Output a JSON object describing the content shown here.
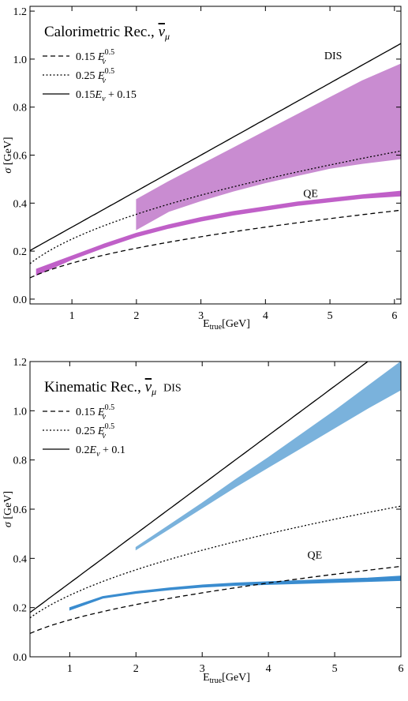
{
  "chart_data": [
    {
      "type": "line",
      "legend_title": "Calorimetric Rec., ",
      "legend_title_sym": "ν",
      "legend_title_sub": "μ",
      "xlabel_main": "E",
      "xlabel_sub": "true",
      "xlabel_unit": "[GeV]",
      "ylabel_sym": "σ",
      "ylabel_unit": " [GeV]",
      "xlim": [
        0.35,
        6.1
      ],
      "ylim": [
        -0.02,
        1.22
      ],
      "xticks": [
        1,
        2,
        3,
        4,
        5,
        6
      ],
      "yticks": [
        0.0,
        0.2,
        0.4,
        0.6,
        0.8,
        1.0,
        1.2
      ],
      "legend": [
        {
          "style": "dashed",
          "coef": "0.15 ",
          "sym": "E",
          "sub": "ν",
          "sup": "0.5",
          "tail": ""
        },
        {
          "style": "dotted",
          "coef": "0.25 ",
          "sym": "E",
          "sub": "ν",
          "sup": "0.5",
          "tail": ""
        },
        {
          "style": "solid",
          "coef": "0.15",
          "sym": "E",
          "sub": "ν",
          "sup": "",
          "tail": " + 0.15"
        }
      ],
      "curves": {
        "dashed_coef": 0.15,
        "dotted_coef": 0.25,
        "solid_slope": 0.15,
        "solid_intercept": 0.15
      },
      "annotations": [
        {
          "text": "DIS",
          "x": 5.05,
          "y": 1.0
        },
        {
          "text": "QE",
          "x": 4.7,
          "y": 0.425
        }
      ],
      "dis_band": {
        "color": "#c98cd1",
        "x": [
          2.0,
          2.5,
          3.0,
          3.5,
          4.0,
          4.5,
          5.0,
          5.5,
          6.1
        ],
        "upper": [
          0.415,
          0.49,
          0.56,
          0.63,
          0.7,
          0.77,
          0.84,
          0.91,
          0.98
        ],
        "lower": [
          0.29,
          0.365,
          0.41,
          0.45,
          0.485,
          0.515,
          0.545,
          0.565,
          0.585
        ]
      },
      "qe_band": {
        "color": "#c060c8",
        "x": [
          0.45,
          1.0,
          1.5,
          2.0,
          2.5,
          3.0,
          3.5,
          4.0,
          4.5,
          5.0,
          5.5,
          6.1
        ],
        "upper": [
          0.125,
          0.18,
          0.23,
          0.275,
          0.31,
          0.34,
          0.365,
          0.385,
          0.405,
          0.42,
          0.435,
          0.45
        ],
        "lower": [
          0.1,
          0.165,
          0.215,
          0.26,
          0.295,
          0.325,
          0.35,
          0.37,
          0.39,
          0.405,
          0.42,
          0.43
        ]
      }
    },
    {
      "type": "line",
      "legend_title": "Kinematic Rec., ",
      "legend_title_sym": "ν",
      "legend_title_sub": "μ",
      "xlabel_main": "E",
      "xlabel_sub": "true",
      "xlabel_unit": "[GeV]",
      "ylabel_sym": "σ",
      "ylabel_unit": " [GeV]",
      "xlim": [
        0.4,
        6.0
      ],
      "ylim": [
        0.0,
        1.2
      ],
      "xticks": [
        1,
        2,
        3,
        4,
        5,
        6
      ],
      "yticks": [
        0.0,
        0.2,
        0.4,
        0.6,
        0.8,
        1.0,
        1.2
      ],
      "legend": [
        {
          "style": "dashed",
          "coef": "0.15 ",
          "sym": "E",
          "sub": "ν",
          "sup": "0.5",
          "tail": ""
        },
        {
          "style": "dotted",
          "coef": "0.25 ",
          "sym": "E",
          "sub": "ν",
          "sup": "0.5",
          "tail": ""
        },
        {
          "style": "solid",
          "coef": "0.2",
          "sym": "E",
          "sub": "ν",
          "sup": "",
          "tail": " + 0.1"
        }
      ],
      "curves": {
        "dashed_coef": 0.15,
        "dotted_coef": 0.25,
        "solid_slope": 0.2,
        "solid_intercept": 0.1
      },
      "annotations": [
        {
          "text": "DIS",
          "x": 2.55,
          "y": 1.08
        },
        {
          "text": "QE",
          "x": 4.7,
          "y": 0.4
        }
      ],
      "dis_band": {
        "color": "#7ab2dc",
        "x": [
          2.0,
          2.5,
          3.0,
          3.5,
          4.0,
          4.5,
          5.0,
          5.5,
          6.0
        ],
        "upper": [
          0.445,
          0.535,
          0.625,
          0.72,
          0.81,
          0.905,
          1.0,
          1.1,
          1.2
        ],
        "lower": [
          0.435,
          0.52,
          0.605,
          0.69,
          0.77,
          0.85,
          0.93,
          1.01,
          1.085
        ]
      },
      "qe_band": {
        "color": "#3a8ccf",
        "x": [
          1.0,
          1.5,
          2.0,
          2.5,
          3.0,
          3.5,
          4.0,
          4.5,
          5.0,
          5.5,
          6.0
        ],
        "upper": [
          0.2,
          0.245,
          0.265,
          0.28,
          0.292,
          0.3,
          0.305,
          0.31,
          0.315,
          0.32,
          0.328
        ],
        "lower": [
          0.19,
          0.238,
          0.258,
          0.272,
          0.283,
          0.29,
          0.294,
          0.298,
          0.302,
          0.306,
          0.31
        ]
      }
    }
  ]
}
